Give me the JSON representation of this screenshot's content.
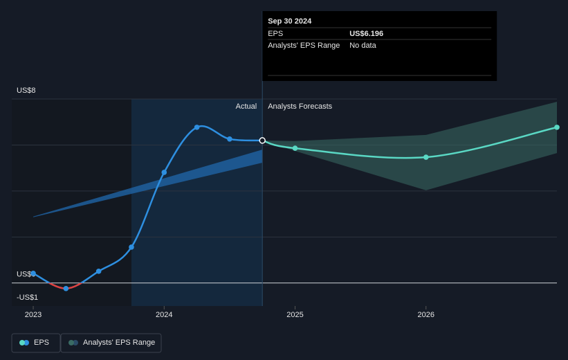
{
  "chart_data": {
    "type": "line",
    "xlim": [
      2022.836,
      2027
    ],
    "xticks": [
      2023,
      2024,
      2025,
      2026
    ],
    "ylim": [
      -1,
      8
    ],
    "yticks": [
      {
        "value": 8,
        "label": "US$8"
      },
      {
        "value": 0,
        "label": "US$0"
      },
      {
        "value": -1,
        "label": "-US$1"
      }
    ],
    "ygrid": [
      8,
      6,
      4,
      2,
      0
    ],
    "highlight": [
      2023.75,
      2024.75
    ],
    "divider_x": 2024.75,
    "divider_labels": [
      "Actual",
      "Analysts Forecasts"
    ],
    "series": [
      {
        "name": "EPS",
        "color": "#2e8fe0",
        "forecast_color": "#5ad8c4",
        "negative_color": "#e0403c",
        "x": [
          2023,
          2023.25,
          2023.5,
          2023.75,
          2024,
          2024.25,
          2024.5,
          2024.75,
          2025,
          2026,
          2027
        ],
        "values": [
          0.42,
          -0.24,
          0.51,
          1.56,
          4.81,
          6.77,
          6.26,
          6.196,
          5.86,
          5.47,
          6.77
        ]
      }
    ],
    "ranges": [
      {
        "name": "Analysts' EPS Range",
        "color": "#3a6b64",
        "x": [
          2024.75,
          2025,
          2026,
          2027
        ],
        "low": [
          6.196,
          5.74,
          4.03,
          5.65
        ],
        "high": [
          6.196,
          6.17,
          6.44,
          7.88
        ]
      },
      {
        "color": "#1f5f9e",
        "x": [
          2023,
          2024.75
        ],
        "low": [
          2.86,
          5.23
        ],
        "high": [
          2.89,
          5.8
        ]
      }
    ],
    "tooltip": {
      "title": "Sep 30 2024",
      "rows": [
        {
          "label": "EPS",
          "value": "US$6.196"
        },
        {
          "label": "Analysts' EPS Range",
          "value": "No data"
        }
      ]
    }
  }
}
